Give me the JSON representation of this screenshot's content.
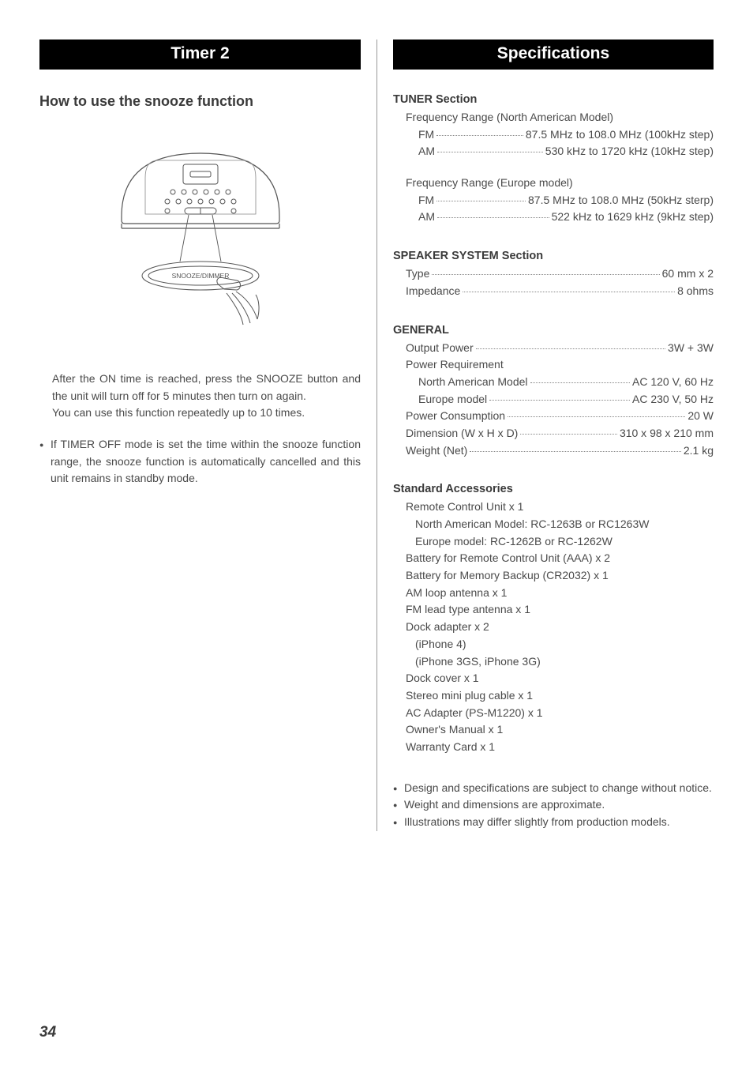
{
  "left": {
    "header": "Timer 2",
    "subheading": "How to use the snooze function",
    "para1": "After the ON time is reached, press the SNOOZE button and the unit will turn off for 5 minutes then turn on again.",
    "para2": "You can use this function repeatedly up to 10 times.",
    "bullet1": "If TIMER OFF mode is set the time within the snooze function range, the snooze function is automatically cancelled and this unit remains in standby mode.",
    "diagram_label": "SNOOZE/DIMMER"
  },
  "right": {
    "header": "Specifications",
    "tuner": {
      "title": "TUNER Section",
      "na_label": "Frequency Range (North American Model)",
      "na_fm_label": "FM",
      "na_fm_value": "87.5 MHz to 108.0 MHz (100kHz step)",
      "na_am_label": "AM",
      "na_am_value": "530 kHz to 1720 kHz (10kHz step)",
      "eu_label": "Frequency Range (Europe model)",
      "eu_fm_label": "FM",
      "eu_fm_value": "87.5 MHz to 108.0 MHz (50kHz sterp)",
      "eu_am_label": "AM",
      "eu_am_value": "522 kHz to 1629 kHz (9kHz step)"
    },
    "speaker": {
      "title": "SPEAKER SYSTEM Section",
      "type_label": "Type",
      "type_value": "60 mm x 2",
      "imp_label": "Impedance",
      "imp_value": "8 ohms"
    },
    "general": {
      "title": "GENERAL",
      "out_label": "Output Power",
      "out_value": "3W + 3W",
      "power_req_label": "Power Requirement",
      "na_label": "North American Model",
      "na_value": "AC 120 V, 60 Hz",
      "eu_label": "Europe model",
      "eu_value": "AC 230 V, 50 Hz",
      "cons_label": "Power Consumption",
      "cons_value": "20 W",
      "dim_label": "Dimension (W x H x D)",
      "dim_value": "310 x 98 x 210 mm",
      "weight_label": "Weight (Net)",
      "weight_value": "2.1 kg"
    },
    "accessories": {
      "title": "Standard Accessories",
      "items": [
        "Remote Control Unit  x 1",
        "  North American Model: RC-1263B or RC1263W",
        "  Europe model: RC-1262B or RC-1262W",
        "Battery for Remote Control Unit (AAA) x 2",
        "Battery for Memory Backup (CR2032) x 1",
        "AM loop antenna x 1",
        "FM lead type antenna x 1",
        "Dock adapter x 2",
        "  (iPhone 4)",
        "  (iPhone 3GS, iPhone 3G)",
        "Dock cover x 1",
        "Stereo mini plug cable x 1",
        "AC Adapter (PS-M1220) x 1",
        "Owner's Manual x 1",
        "Warranty Card x 1"
      ]
    },
    "notes": [
      "Design and specifications are subject to change without notice.",
      "Weight and dimensions are approximate.",
      "Illustrations may differ slightly from production models."
    ]
  },
  "page_number": "34"
}
